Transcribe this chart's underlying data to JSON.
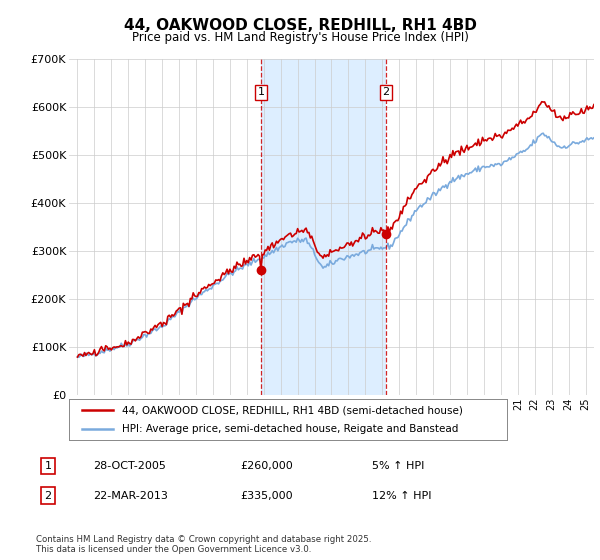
{
  "title": "44, OAKWOOD CLOSE, REDHILL, RH1 4BD",
  "subtitle": "Price paid vs. HM Land Registry's House Price Index (HPI)",
  "legend_line1": "44, OAKWOOD CLOSE, REDHILL, RH1 4BD (semi-detached house)",
  "legend_line2": "HPI: Average price, semi-detached house, Reigate and Banstead",
  "sale1_date": "28-OCT-2005",
  "sale1_price": "£260,000",
  "sale1_hpi": "5% ↑ HPI",
  "sale2_date": "22-MAR-2013",
  "sale2_price": "£335,000",
  "sale2_hpi": "12% ↑ HPI",
  "footer": "Contains HM Land Registry data © Crown copyright and database right 2025.\nThis data is licensed under the Open Government Licence v3.0.",
  "sale1_year": 2005.83,
  "sale1_value": 260000,
  "sale2_year": 2013.22,
  "sale2_value": 335000,
  "ylim": [
    0,
    700000
  ],
  "xlim": [
    1994.5,
    2025.5
  ],
  "yticks": [
    0,
    100000,
    200000,
    300000,
    400000,
    500000,
    600000,
    700000
  ],
  "ytick_labels": [
    "£0",
    "£100K",
    "£200K",
    "£300K",
    "£400K",
    "£500K",
    "£600K",
    "£700K"
  ],
  "red_color": "#cc0000",
  "blue_color": "#7aaadd",
  "shade_color": "#ddeeff",
  "bg_color": "#ffffff",
  "vline_color": "#cc0000",
  "grid_color": "#cccccc"
}
